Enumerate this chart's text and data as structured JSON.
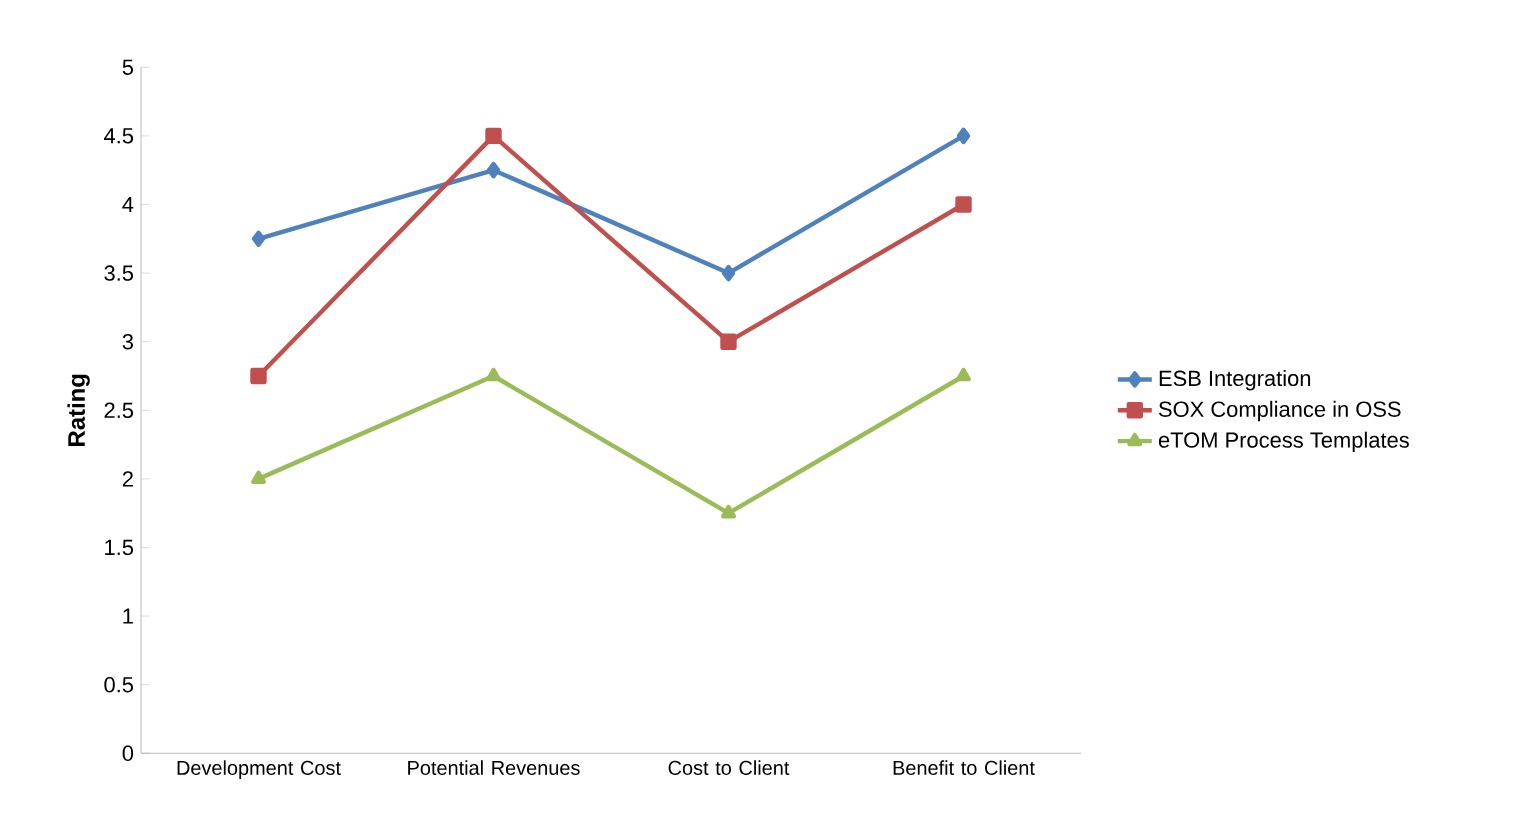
{
  "chart_data": {
    "type": "line",
    "ylabel": "Rating",
    "categories": [
      "Development Cost",
      "Potential Revenues",
      "Cost to Client",
      "Benefit to Client"
    ],
    "series": [
      {
        "name": "ESB Integration",
        "color": "#4f81bd",
        "marker": "diamond",
        "values": [
          3.75,
          4.25,
          3.5,
          4.5
        ]
      },
      {
        "name": "SOX Compliance in OSS",
        "color": "#c0504d",
        "marker": "square",
        "values": [
          2.75,
          4.5,
          3.0,
          4.0
        ]
      },
      {
        "name": "eTOM Process Templates",
        "color": "#9bbb59",
        "marker": "triangle",
        "values": [
          2.0,
          2.75,
          1.75,
          2.75
        ]
      }
    ],
    "ylim": [
      0,
      5
    ],
    "yticks": [
      0,
      0.5,
      1,
      1.5,
      2,
      2.5,
      3,
      3.5,
      4,
      4.5,
      5
    ],
    "grid": false,
    "legend": "right",
    "line_style": "solid"
  }
}
